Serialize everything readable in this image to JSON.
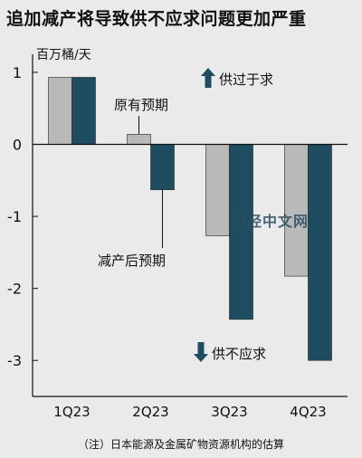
{
  "title": "追加减产将导致供不应求问题更加严重",
  "watermark": "日经中文网",
  "footnote": "（注）日本能源及金属矿物资源机构的估算",
  "chart_data": {
    "type": "bar",
    "categories": [
      "1Q23",
      "2Q23",
      "3Q23",
      "4Q23"
    ],
    "series": [
      {
        "name": "原有预期",
        "values": [
          0.93,
          0.14,
          -1.27,
          -1.83
        ],
        "color": "#b9b9b9"
      },
      {
        "name": "减产后预期",
        "values": [
          0.93,
          -0.63,
          -2.43,
          -3.0
        ],
        "color": "#1e4d61"
      }
    ],
    "ylabel": "百万桶/天",
    "ylim": [
      -3.5,
      1.25
    ],
    "yticks": [
      1,
      0,
      -1,
      -2,
      -3
    ],
    "ytick_labels": [
      "1",
      "0",
      "-1",
      "-2",
      "-3"
    ],
    "annotations": {
      "surplus": "供过于求",
      "deficit": "供不应求"
    },
    "arrow_color": "#1e4d61",
    "axis_color": "#111111"
  }
}
